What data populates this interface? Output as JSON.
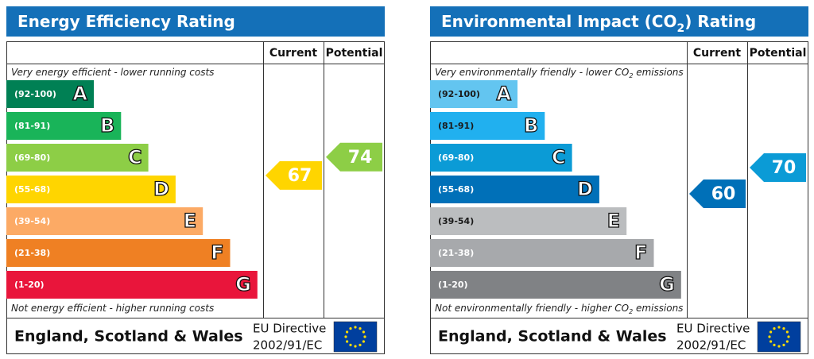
{
  "panels": [
    {
      "title": [
        "Energy Efficiency Rating"
      ],
      "headers": [
        "Current",
        "Potential"
      ],
      "top_note": [
        "Very energy efficient - lower running costs"
      ],
      "bottom_note": [
        "Not energy efficient - higher running costs"
      ],
      "bands": [
        {
          "range": "(92-100)",
          "letter": "A",
          "color": "#008054",
          "label_color": "#ffffff"
        },
        {
          "range": "(81-91)",
          "letter": "B",
          "color": "#19b459",
          "label_color": "#ffffff"
        },
        {
          "range": "(69-80)",
          "letter": "C",
          "color": "#8dce46",
          "label_color": "#ffffff"
        },
        {
          "range": "(55-68)",
          "letter": "D",
          "color": "#ffd500",
          "label_color": "#ffffff"
        },
        {
          "range": "(39-54)",
          "letter": "E",
          "color": "#fcaa65",
          "label_color": "#ffffff"
        },
        {
          "range": "(21-38)",
          "letter": "F",
          "color": "#ef8023",
          "label_color": "#ffffff"
        },
        {
          "range": "(1-20)",
          "letter": "G",
          "color": "#e9153b",
          "label_color": "#ffffff"
        }
      ],
      "current": {
        "value": 67,
        "color": "#ffd500"
      },
      "potential": {
        "value": 74,
        "color": "#8dce46"
      },
      "footer": "England, Scotland & Wales",
      "directive": [
        "EU Directive",
        "2002/91/EC"
      ]
    },
    {
      "title": [
        "Environmental Impact (CO",
        "2",
        ") Rating"
      ],
      "headers": [
        "Current",
        "Potential"
      ],
      "top_note": [
        "Very environmentally friendly - lower CO",
        "2",
        " emissions"
      ],
      "bottom_note": [
        "Not environmentally friendly - higher CO",
        "2",
        " emissions"
      ],
      "bands": [
        {
          "range": "(92-100)",
          "letter": "A",
          "color": "#63c5f0",
          "label_color": "#1a1a1a"
        },
        {
          "range": "(81-91)",
          "letter": "B",
          "color": "#21b0ef",
          "label_color": "#1a1a1a"
        },
        {
          "range": "(69-80)",
          "letter": "C",
          "color": "#0b9bd6",
          "label_color": "#ffffff"
        },
        {
          "range": "(55-68)",
          "letter": "D",
          "color": "#0070b8",
          "label_color": "#ffffff"
        },
        {
          "range": "(39-54)",
          "letter": "E",
          "color": "#bbbdbf",
          "label_color": "#1a1a1a"
        },
        {
          "range": "(21-38)",
          "letter": "F",
          "color": "#a7a9ac",
          "label_color": "#ffffff"
        },
        {
          "range": "(1-20)",
          "letter": "G",
          "color": "#808285",
          "label_color": "#ffffff"
        }
      ],
      "current": {
        "value": 60,
        "color": "#0070b8"
      },
      "potential": {
        "value": 70,
        "color": "#0b9bd6"
      },
      "footer": "England, Scotland & Wales",
      "directive": [
        "EU Directive",
        "2002/91/EC"
      ]
    }
  ]
}
